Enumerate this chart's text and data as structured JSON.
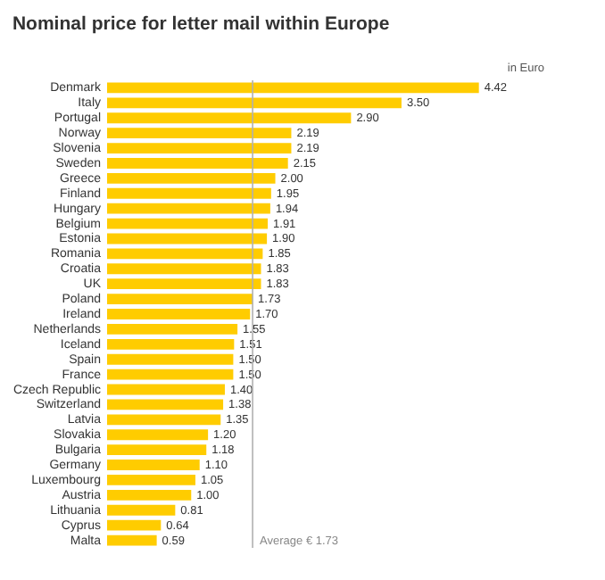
{
  "chart_data": {
    "type": "bar",
    "orientation": "horizontal",
    "title": "Nominal price for letter mail within Europe",
    "annotations": [
      "in Euro"
    ],
    "categories": [
      "Denmark",
      "Italy",
      "Portugal",
      "Norway",
      "Slovenia",
      "Sweden",
      "Greece",
      "Finland",
      "Hungary",
      "Belgium",
      "Estonia",
      "Romania",
      "Croatia",
      "UK",
      "Poland",
      "Ireland",
      "Netherlands",
      "Iceland",
      "Spain",
      "France",
      "Czech Republic",
      "Switzerland",
      "Latvia",
      "Slovakia",
      "Bulgaria",
      "Germany",
      "Luxembourg",
      "Austria",
      "Lithuania",
      "Cyprus",
      "Malta"
    ],
    "values": [
      4.42,
      3.5,
      2.9,
      2.19,
      2.19,
      2.15,
      2.0,
      1.95,
      1.94,
      1.91,
      1.9,
      1.85,
      1.83,
      1.83,
      1.73,
      1.7,
      1.55,
      1.51,
      1.5,
      1.5,
      1.4,
      1.38,
      1.35,
      1.2,
      1.18,
      1.1,
      1.05,
      1.0,
      0.81,
      0.64,
      0.59
    ],
    "value_labels": [
      "4.42",
      "3.50",
      "2.90",
      "2.19",
      "2.19",
      "2.15",
      "2.00",
      "1.95",
      "1.94",
      "1.91",
      "1.90",
      "1.85",
      "1.83",
      "1.83",
      "1.73",
      "1.70",
      "1.55",
      "1.51",
      "1.50",
      "1.50",
      "1.40",
      "1.38",
      "1.35",
      "1.20",
      "1.18",
      "1.10",
      "1.05",
      "1.00",
      "0.81",
      "0.64",
      "0.59"
    ],
    "color": "#ffcc00",
    "grid": false,
    "ref_lines": [
      {
        "axis": "x",
        "value": 1.73,
        "label": "Average € 1.73",
        "color": "#b0b0b0",
        "line_style": "solid"
      }
    ]
  }
}
